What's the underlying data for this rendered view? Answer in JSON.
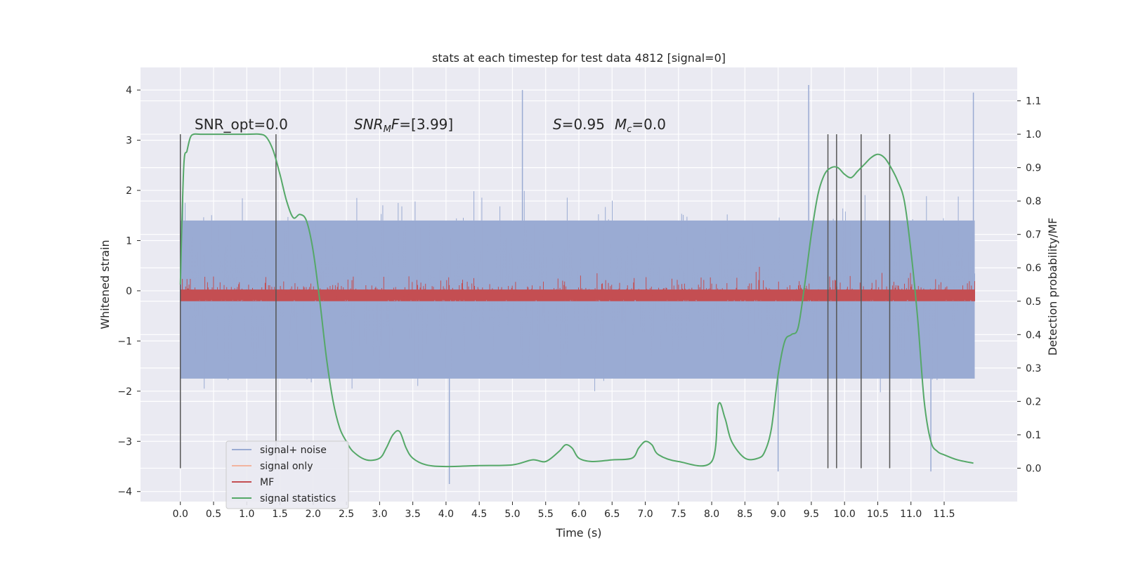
{
  "chart_data": {
    "type": "line",
    "title": "stats at each timestep for test data 4812 [signal=0]",
    "xlabel": "Time (s)",
    "ylabel": "Whitened strain",
    "y2label": "Detection probability/MF",
    "xlim": [
      -0.6,
      12.6
    ],
    "ylim": [
      -4.2,
      4.45
    ],
    "y2lim": [
      -0.1,
      1.2
    ],
    "xticks": [
      "0.0",
      "0.5",
      "1.0",
      "1.5",
      "2.0",
      "2.5",
      "3.0",
      "3.5",
      "4.0",
      "4.5",
      "5.0",
      "5.5",
      "6.0",
      "6.5",
      "7.0",
      "7.5",
      "8.0",
      "8.5",
      "9.0",
      "9.5",
      "10.0",
      "10.5",
      "11.0",
      "11.5"
    ],
    "yticks": [
      "4",
      "3",
      "2",
      "1",
      "0",
      "−1",
      "−2",
      "−3",
      "−4"
    ],
    "y2ticks": [
      "1.1",
      "1.0",
      "0.9",
      "0.8",
      "0.7",
      "0.6",
      "0.5",
      "0.4",
      "0.3",
      "0.2",
      "0.1",
      "0.0"
    ],
    "grid": true,
    "legend_position": "lower-left",
    "annotations": [
      {
        "text": "SNR_opt=0.0",
        "x": 0.2,
        "y": 3.2
      },
      {
        "text": "SNR_MF=[3.99]",
        "x": 2.6,
        "y": 3.2
      },
      {
        "text": "S=0.95   M_c=0.0",
        "x": 5.6,
        "y": 3.2
      }
    ],
    "annotation_parts": {
      "a1": "SNR_opt=0.0",
      "a2_var": "SNR",
      "a2_sub": "M",
      "a2_var2": "F",
      "a2_rest": "=[3.99]",
      "a3_var": "S",
      "a3_rest": "=0.95",
      "a3_var2": "M",
      "a3_sub": "c",
      "a3_rest2": "=0.0"
    },
    "series": [
      {
        "name": "signal+ noise",
        "color": "#9aabd3",
        "noise_range": [
          -2.2,
          2.5
        ],
        "peaks": [
          4.1,
          -3.8
        ]
      },
      {
        "name": "signal only",
        "color": "#f2b49f",
        "values": []
      },
      {
        "name": "MF",
        "color": "#c44e52",
        "axis": "y2",
        "range": [
          0.5,
          0.6
        ]
      },
      {
        "name": "signal statistics",
        "color": "#55a868",
        "axis": "y2",
        "x": [
          0.0,
          0.05,
          0.1,
          0.15,
          0.2,
          0.3,
          0.5,
          1.0,
          1.2,
          1.3,
          1.4,
          1.5,
          1.6,
          1.7,
          1.8,
          1.9,
          2.0,
          2.1,
          2.2,
          2.3,
          2.4,
          2.5,
          2.6,
          2.8,
          3.0,
          3.1,
          3.2,
          3.3,
          3.4,
          3.5,
          3.7,
          4.0,
          4.5,
          5.0,
          5.3,
          5.5,
          5.7,
          5.8,
          5.9,
          6.0,
          6.2,
          6.5,
          6.8,
          6.9,
          7.0,
          7.1,
          7.2,
          7.5,
          8.0,
          8.1,
          8.2,
          8.3,
          8.5,
          8.7,
          8.8,
          8.9,
          9.0,
          9.1,
          9.2,
          9.3,
          9.4,
          9.5,
          9.6,
          9.7,
          9.8,
          9.9,
          10.0,
          10.1,
          10.2,
          10.3,
          10.4,
          10.5,
          10.6,
          10.7,
          10.8,
          10.9,
          11.0,
          11.1,
          11.2,
          11.3,
          11.4,
          11.5,
          11.7,
          11.94
        ],
        "values": [
          0.55,
          0.9,
          0.95,
          0.99,
          1.0,
          1.0,
          1.0,
          1.0,
          1.0,
          0.99,
          0.95,
          0.88,
          0.8,
          0.75,
          0.76,
          0.74,
          0.65,
          0.5,
          0.33,
          0.2,
          0.12,
          0.08,
          0.05,
          0.025,
          0.03,
          0.06,
          0.1,
          0.11,
          0.06,
          0.03,
          0.01,
          0.005,
          0.008,
          0.01,
          0.025,
          0.02,
          0.05,
          0.07,
          0.06,
          0.03,
          0.02,
          0.025,
          0.03,
          0.06,
          0.08,
          0.07,
          0.04,
          0.02,
          0.02,
          0.19,
          0.15,
          0.08,
          0.03,
          0.03,
          0.05,
          0.12,
          0.28,
          0.38,
          0.4,
          0.42,
          0.55,
          0.7,
          0.82,
          0.88,
          0.9,
          0.9,
          0.88,
          0.87,
          0.89,
          0.91,
          0.93,
          0.94,
          0.93,
          0.9,
          0.86,
          0.8,
          0.65,
          0.45,
          0.2,
          0.08,
          0.05,
          0.04,
          0.025,
          0.015
        ]
      }
    ],
    "vlines": [
      0.0,
      1.44,
      9.75,
      9.88,
      10.25,
      10.68
    ]
  }
}
